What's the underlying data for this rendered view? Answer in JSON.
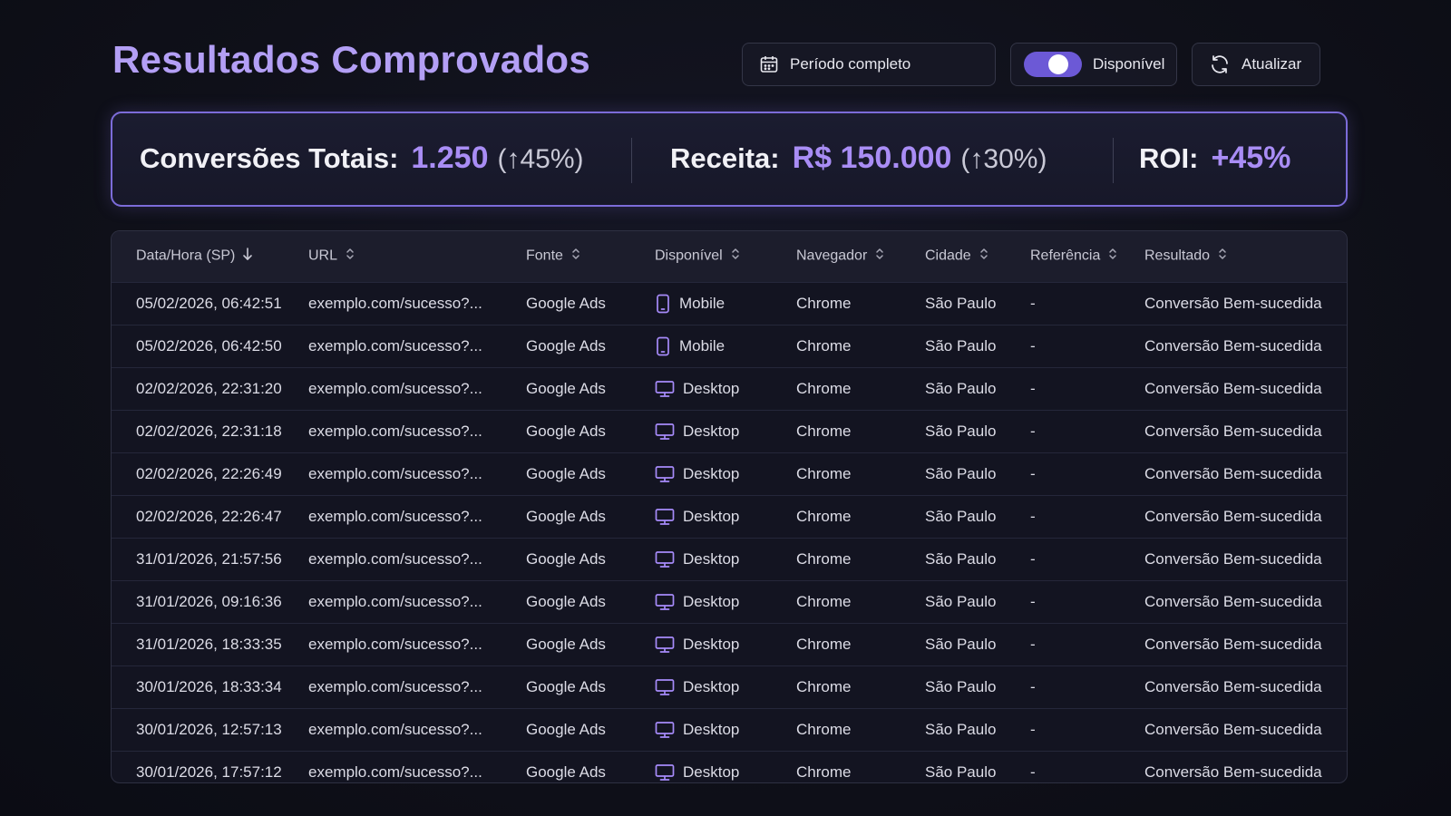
{
  "header": {
    "title": "Resultados Comprovados",
    "period_button": {
      "label": "Período completo",
      "icon": "calendar-icon"
    },
    "toggle": {
      "label": "Disponível",
      "state": "on"
    },
    "refresh_button": {
      "label": "Atualizar",
      "icon": "refresh-icon"
    }
  },
  "summary": {
    "conversions": {
      "label": "Conversões Totais:",
      "value": "1.250",
      "change": "(↑45%)"
    },
    "revenue": {
      "label": "Receita:",
      "value": "R$ 150.000",
      "change": "(↑30%)"
    },
    "roi": {
      "label": "ROI:",
      "value": "+45%"
    }
  },
  "colors": {
    "accent": "#a98df5",
    "title": "#b39ff5",
    "toggle": "#6c59d6",
    "icon": "#a78bfa"
  },
  "table": {
    "columns": [
      {
        "label": "Data/Hora (SP)",
        "sort": "desc"
      },
      {
        "label": "URL",
        "sort": "none"
      },
      {
        "label": "Fonte",
        "sort": "none"
      },
      {
        "label": "Disponível",
        "sort": "none"
      },
      {
        "label": "Navegador",
        "sort": "none"
      },
      {
        "label": "Cidade",
        "sort": "none"
      },
      {
        "label": "Referência",
        "sort": "none"
      },
      {
        "label": "Resultado",
        "sort": "none"
      }
    ],
    "rows": [
      {
        "datetime": "05/02/2026, 06:42:51",
        "url": "exemplo.com/sucesso?...",
        "source": "Google Ads",
        "device": "Mobile",
        "device_icon": "mobile-icon",
        "browser": "Chrome",
        "city": "São Paulo",
        "referrer": "-",
        "result": "Conversão Bem-sucedida"
      },
      {
        "datetime": "05/02/2026, 06:42:50",
        "url": "exemplo.com/sucesso?...",
        "source": "Google Ads",
        "device": "Mobile",
        "device_icon": "mobile-icon",
        "browser": "Chrome",
        "city": "São Paulo",
        "referrer": "-",
        "result": "Conversão Bem-sucedida"
      },
      {
        "datetime": "02/02/2026, 22:31:20",
        "url": "exemplo.com/sucesso?...",
        "source": "Google Ads",
        "device": "Desktop",
        "device_icon": "desktop-icon",
        "browser": "Chrome",
        "city": "São Paulo",
        "referrer": "-",
        "result": "Conversão Bem-sucedida"
      },
      {
        "datetime": "02/02/2026, 22:31:18",
        "url": "exemplo.com/sucesso?...",
        "source": "Google Ads",
        "device": "Desktop",
        "device_icon": "desktop-icon",
        "browser": "Chrome",
        "city": "São Paulo",
        "referrer": "-",
        "result": "Conversão Bem-sucedida"
      },
      {
        "datetime": "02/02/2026, 22:26:49",
        "url": "exemplo.com/sucesso?...",
        "source": "Google Ads",
        "device": "Desktop",
        "device_icon": "desktop-icon",
        "browser": "Chrome",
        "city": "São Paulo",
        "referrer": "-",
        "result": "Conversão Bem-sucedida"
      },
      {
        "datetime": "02/02/2026, 22:26:47",
        "url": "exemplo.com/sucesso?...",
        "source": "Google Ads",
        "device": "Desktop",
        "device_icon": "desktop-icon",
        "browser": "Chrome",
        "city": "São Paulo",
        "referrer": "-",
        "result": "Conversão Bem-sucedida"
      },
      {
        "datetime": "31/01/2026, 21:57:56",
        "url": "exemplo.com/sucesso?...",
        "source": "Google Ads",
        "device": "Desktop",
        "device_icon": "desktop-icon",
        "browser": "Chrome",
        "city": "São Paulo",
        "referrer": "-",
        "result": "Conversão Bem-sucedida"
      },
      {
        "datetime": "31/01/2026, 09:16:36",
        "url": "exemplo.com/sucesso?...",
        "source": "Google Ads",
        "device": "Desktop",
        "device_icon": "desktop-icon",
        "browser": "Chrome",
        "city": "São Paulo",
        "referrer": "-",
        "result": "Conversão Bem-sucedida"
      },
      {
        "datetime": "31/01/2026, 18:33:35",
        "url": "exemplo.com/sucesso?...",
        "source": "Google Ads",
        "device": "Desktop",
        "device_icon": "desktop-icon",
        "browser": "Chrome",
        "city": "São Paulo",
        "referrer": "-",
        "result": "Conversão Bem-sucedida"
      },
      {
        "datetime": "30/01/2026, 18:33:34",
        "url": "exemplo.com/sucesso?...",
        "source": "Google Ads",
        "device": "Desktop",
        "device_icon": "desktop-icon",
        "browser": "Chrome",
        "city": "São Paulo",
        "referrer": "-",
        "result": "Conversão Bem-sucedida"
      },
      {
        "datetime": "30/01/2026, 12:57:13",
        "url": "exemplo.com/sucesso?...",
        "source": "Google Ads",
        "device": "Desktop",
        "device_icon": "desktop-icon",
        "browser": "Chrome",
        "city": "São Paulo",
        "referrer": "-",
        "result": "Conversão Bem-sucedida"
      },
      {
        "datetime": "30/01/2026, 17:57:12",
        "url": "exemplo.com/sucesso?...",
        "source": "Google Ads",
        "device": "Desktop",
        "device_icon": "desktop-icon",
        "browser": "Chrome",
        "city": "São Paulo",
        "referrer": "-",
        "result": "Conversão Bem-sucedida"
      }
    ]
  }
}
